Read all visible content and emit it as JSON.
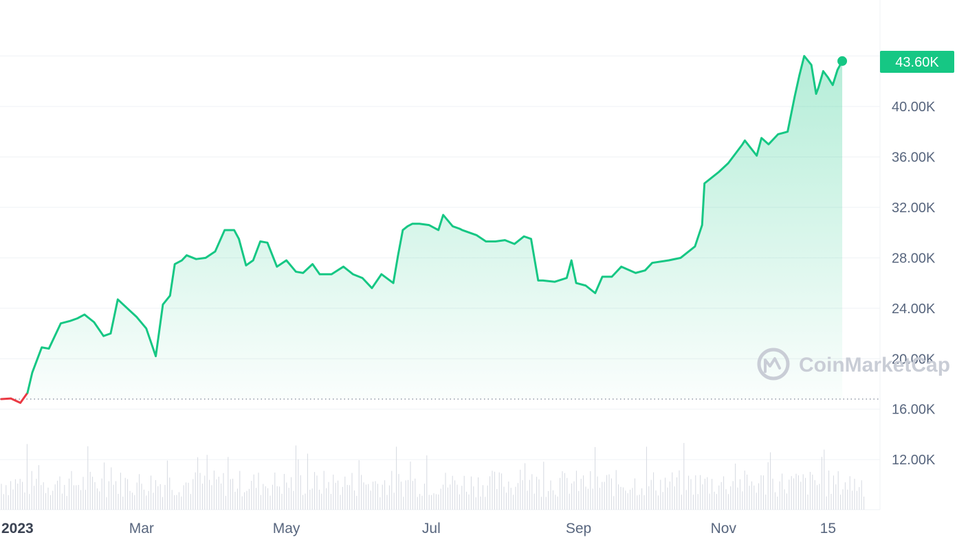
{
  "chart_data": {
    "type": "line",
    "yticks": [
      "12.00K",
      "16.00K",
      "20.00K",
      "24.00K",
      "28.00K",
      "32.00K",
      "36.00K",
      "40.00K"
    ],
    "xticks": [
      "2023",
      "Mar",
      "May",
      "Jul",
      "Sep",
      "Nov",
      "15"
    ],
    "ylim": [
      8000,
      48000
    ],
    "baseline": 16800,
    "last_price_label": "43.60K",
    "watermark": "CoinMarketCap",
    "colors": {
      "up": "#16c784",
      "down": "#ea3943",
      "grid": "#eff2f5",
      "axis_text": "#58667e"
    },
    "series": [
      {
        "x": [
          "2023-01-01",
          "2023-01-05",
          "2023-01-09",
          "2023-01-12",
          "2023-01-14",
          "2023-01-18",
          "2023-01-21",
          "2023-01-26",
          "2023-01-30",
          "2023-02-02",
          "2023-02-05",
          "2023-02-09",
          "2023-02-13",
          "2023-02-16",
          "2023-02-19",
          "2023-02-23",
          "2023-02-27",
          "2023-03-03",
          "2023-03-07",
          "2023-03-10",
          "2023-03-13",
          "2023-03-15",
          "2023-03-18",
          "2023-03-20",
          "2023-03-24",
          "2023-03-28",
          "2023-04-01",
          "2023-04-05",
          "2023-04-09",
          "2023-04-11",
          "2023-04-14",
          "2023-04-17",
          "2023-04-20",
          "2023-04-23",
          "2023-04-27",
          "2023-05-01",
          "2023-05-05",
          "2023-05-08",
          "2023-05-12",
          "2023-05-15",
          "2023-05-20",
          "2023-05-25",
          "2023-05-29",
          "2023-06-02",
          "2023-06-06",
          "2023-06-10",
          "2023-06-15",
          "2023-06-17",
          "2023-06-19",
          "2023-06-21",
          "2023-06-23",
          "2023-06-26",
          "2023-06-30",
          "2023-07-04",
          "2023-07-06",
          "2023-07-10",
          "2023-07-13",
          "2023-07-14",
          "2023-07-20",
          "2023-07-24",
          "2023-07-28",
          "2023-08-01",
          "2023-08-05",
          "2023-08-09",
          "2023-08-12",
          "2023-08-15",
          "2023-08-17",
          "2023-08-22",
          "2023-08-27",
          "2023-08-29",
          "2023-08-31",
          "2023-09-04",
          "2023-09-08",
          "2023-09-11",
          "2023-09-15",
          "2023-09-19",
          "2023-09-25",
          "2023-09-29",
          "2023-10-02",
          "2023-10-09",
          "2023-10-14",
          "2023-10-16",
          "2023-10-20",
          "2023-10-23",
          "2023-10-24",
          "2023-10-30",
          "2023-11-03",
          "2023-11-09",
          "2023-11-10",
          "2023-11-15",
          "2023-11-17",
          "2023-11-20",
          "2023-11-24",
          "2023-11-28",
          "2023-12-01",
          "2023-12-03",
          "2023-12-05",
          "2023-12-08",
          "2023-12-10",
          "2023-12-11",
          "2023-12-13",
          "2023-12-15",
          "2023-12-17",
          "2023-12-19",
          "2023-12-21"
        ],
        "values": [
          16800,
          16850,
          16500,
          17300,
          18900,
          20900,
          20800,
          22800,
          23000,
          23200,
          23500,
          22900,
          21800,
          22000,
          24700,
          24000,
          23300,
          22400,
          20200,
          24300,
          25000,
          27500,
          27800,
          28200,
          27900,
          28000,
          28500,
          30200,
          30200,
          29500,
          27400,
          27800,
          29300,
          29200,
          27300,
          27800,
          26900,
          26800,
          27500,
          26700,
          26700,
          27300,
          26700,
          26400,
          25600,
          26700,
          26000,
          28200,
          30200,
          30500,
          30700,
          30700,
          30600,
          30200,
          31400,
          30500,
          30300,
          30200,
          29800,
          29300,
          29300,
          29400,
          29100,
          29700,
          29500,
          26200,
          26200,
          26100,
          26400,
          27800,
          26000,
          25800,
          25200,
          26500,
          26500,
          27300,
          26800,
          27000,
          27600,
          27800,
          28000,
          28300,
          28900,
          30600,
          33900,
          34800,
          35500,
          37000,
          37300,
          36100,
          37500,
          37000,
          37800,
          38000,
          40800,
          42500,
          44000,
          43300,
          41000,
          41500,
          42800,
          42300,
          41700,
          42900,
          43600
        ]
      }
    ]
  }
}
